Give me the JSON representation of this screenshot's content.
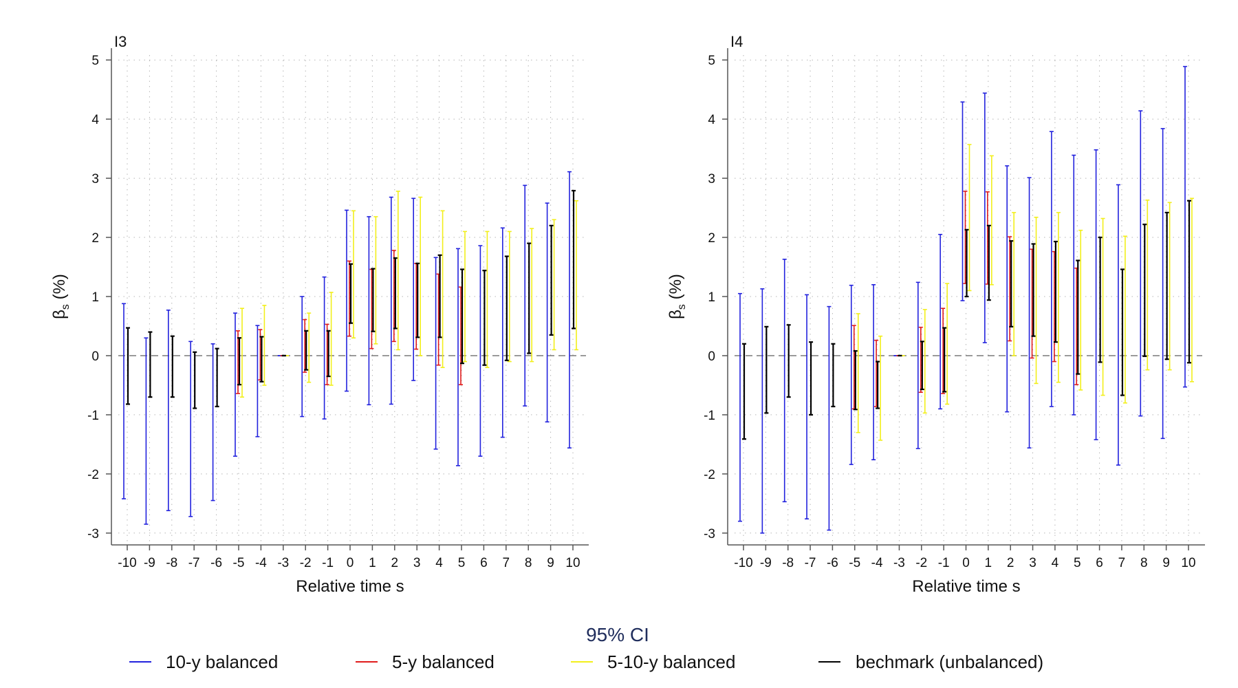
{
  "legend_title": "95% CI",
  "series_colors": {
    "10y": "#2222dd",
    "5y": "#e01a1a",
    "510y": "#f2ef1a",
    "bench": "#000000"
  },
  "legend": [
    {
      "key": "10y",
      "label": "10-y balanced"
    },
    {
      "key": "5y",
      "label": "5-y balanced"
    },
    {
      "key": "510y",
      "label": "5-10-y balanced"
    },
    {
      "key": "bench",
      "label": "bechmark (unbalanced)"
    }
  ],
  "chart_data": [
    {
      "type": "errorbar",
      "title": "I3",
      "xlabel": "Relative time s",
      "ylabel_main": "β",
      "ylabel_sub": "s",
      "ylabel_rest": " (%)",
      "x": [
        -10,
        -9,
        -8,
        -7,
        -6,
        -5,
        -4,
        -3,
        -2,
        -1,
        0,
        1,
        2,
        3,
        4,
        5,
        6,
        7,
        8,
        9,
        10
      ],
      "ylim": [
        -3.2,
        5.2
      ],
      "yticks": [
        -3,
        -2,
        -1,
        0,
        1,
        2,
        3,
        4,
        5
      ],
      "xtick_labels": [
        "-10",
        "-9",
        "-8",
        "-7",
        "-6",
        "-5",
        "-4",
        "-3",
        "-2",
        "-1",
        "0",
        "1",
        "2",
        "3",
        "4",
        "5",
        "6",
        "7",
        "8",
        "9",
        "10"
      ],
      "ytick_labels": [
        "-3",
        "-2",
        "-1",
        "0",
        "1",
        "2",
        "3",
        "4",
        "5"
      ],
      "series": [
        {
          "key": "10y",
          "low": [
            -2.42,
            -2.85,
            -2.62,
            -2.72,
            -2.45,
            -1.7,
            -1.37,
            0,
            -1.03,
            -1.07,
            -0.6,
            -0.83,
            -0.82,
            -0.42,
            -1.58,
            -1.86,
            -1.7,
            -1.38,
            -0.85,
            -1.12,
            -1.56
          ],
          "high": [
            0.88,
            0.3,
            0.77,
            0.24,
            0.2,
            0.72,
            0.51,
            0,
            1.0,
            1.33,
            2.46,
            2.35,
            2.68,
            2.66,
            1.66,
            1.81,
            1.86,
            2.16,
            2.88,
            2.58,
            3.11
          ]
        },
        {
          "key": "5y",
          "low": [
            null,
            null,
            null,
            null,
            null,
            -0.64,
            -0.41,
            0,
            -0.28,
            -0.49,
            0.33,
            0.12,
            0.24,
            0.11,
            -0.16,
            -0.49,
            null,
            null,
            null,
            null,
            null
          ],
          "high": [
            null,
            null,
            null,
            null,
            null,
            0.42,
            0.44,
            0,
            0.61,
            0.53,
            1.6,
            1.46,
            1.78,
            1.56,
            1.38,
            1.16,
            null,
            null,
            null,
            null,
            null
          ]
        },
        {
          "key": "510y",
          "low": [
            null,
            null,
            null,
            null,
            null,
            -0.7,
            -0.5,
            0,
            -0.45,
            -0.5,
            0.3,
            0.2,
            0.1,
            0.0,
            -0.2,
            -0.1,
            -0.2,
            -0.1,
            -0.1,
            0.1,
            0.1
          ],
          "high": [
            null,
            null,
            null,
            null,
            null,
            0.8,
            0.85,
            0,
            0.72,
            1.07,
            2.45,
            2.35,
            2.78,
            2.68,
            2.45,
            2.1,
            2.1,
            2.1,
            2.15,
            2.3,
            2.62
          ]
        },
        {
          "key": "bench",
          "low": [
            -0.82,
            -0.7,
            -0.7,
            -0.89,
            -0.86,
            -0.49,
            -0.44,
            0,
            -0.24,
            -0.35,
            0.55,
            0.41,
            0.46,
            0.31,
            0.31,
            -0.13,
            -0.16,
            -0.08,
            0.04,
            0.35,
            0.46
          ],
          "high": [
            0.47,
            0.4,
            0.33,
            0.06,
            0.12,
            0.3,
            0.32,
            0,
            0.42,
            0.42,
            1.55,
            1.47,
            1.65,
            1.56,
            1.7,
            1.46,
            1.44,
            1.68,
            1.9,
            2.2,
            2.79
          ]
        }
      ]
    },
    {
      "type": "errorbar",
      "title": "I4",
      "xlabel": "Relative time s",
      "ylabel_main": "β",
      "ylabel_sub": "s",
      "ylabel_rest": " (%)",
      "x": [
        -10,
        -9,
        -8,
        -7,
        -6,
        -5,
        -4,
        -3,
        -2,
        -1,
        0,
        1,
        2,
        3,
        4,
        5,
        6,
        7,
        8,
        9,
        10
      ],
      "ylim": [
        -3.2,
        5.2
      ],
      "yticks": [
        -3,
        -2,
        -1,
        0,
        1,
        2,
        3,
        4,
        5
      ],
      "xtick_labels": [
        "-10",
        "-9",
        "-8",
        "-7",
        "-6",
        "-5",
        "-4",
        "-3",
        "-2",
        "-1",
        "0",
        "1",
        "2",
        "3",
        "4",
        "5",
        "6",
        "7",
        "8",
        "9",
        "10"
      ],
      "ytick_labels": [
        "-3",
        "-2",
        "-1",
        "0",
        "1",
        "2",
        "3",
        "4",
        "5"
      ],
      "series": [
        {
          "key": "10y",
          "low": [
            -2.8,
            -3.0,
            -2.47,
            -2.76,
            -2.95,
            -1.84,
            -1.76,
            0,
            -1.57,
            -0.9,
            0.93,
            0.22,
            -0.95,
            -1.56,
            -0.86,
            -1.0,
            -1.42,
            -1.85,
            -1.02,
            -1.4,
            -0.53
          ],
          "high": [
            1.05,
            1.13,
            1.63,
            1.03,
            0.83,
            1.19,
            1.2,
            0,
            1.24,
            2.05,
            4.29,
            4.44,
            3.21,
            3.01,
            3.79,
            3.39,
            3.48,
            2.89,
            4.14,
            3.84,
            4.89
          ]
        },
        {
          "key": "5y",
          "low": [
            null,
            null,
            null,
            null,
            null,
            -0.9,
            -0.86,
            0,
            -0.62,
            -0.64,
            1.22,
            1.21,
            0.25,
            -0.04,
            -0.1,
            -0.49,
            null,
            null,
            null,
            null,
            null
          ],
          "high": [
            null,
            null,
            null,
            null,
            null,
            0.51,
            0.26,
            0,
            0.48,
            0.8,
            2.78,
            2.77,
            2.01,
            1.8,
            1.76,
            1.48,
            null,
            null,
            null,
            null,
            null
          ]
        },
        {
          "key": "510y",
          "low": [
            null,
            null,
            null,
            null,
            null,
            -1.3,
            -1.43,
            0,
            -0.97,
            -0.82,
            1.1,
            1.2,
            0.0,
            -0.47,
            -0.45,
            -0.58,
            -0.67,
            -0.8,
            -0.24,
            -0.24,
            -0.44
          ],
          "high": [
            null,
            null,
            null,
            null,
            null,
            0.71,
            0.33,
            0,
            0.78,
            1.22,
            3.57,
            3.38,
            2.42,
            2.34,
            2.42,
            2.12,
            2.32,
            2.02,
            2.63,
            2.59,
            2.66
          ]
        },
        {
          "key": "bench",
          "low": [
            -1.41,
            -0.97,
            -0.7,
            -1.0,
            -0.86,
            -0.91,
            -0.89,
            0,
            -0.57,
            -0.61,
            1.0,
            0.94,
            0.49,
            0.33,
            0.23,
            -0.31,
            -0.11,
            -0.67,
            -0.01,
            -0.06,
            -0.12
          ],
          "high": [
            0.2,
            0.49,
            0.52,
            0.23,
            0.2,
            0.08,
            -0.1,
            0,
            0.24,
            0.47,
            2.13,
            2.2,
            1.94,
            1.89,
            1.93,
            1.61,
            2.0,
            1.46,
            2.22,
            2.42,
            2.62
          ]
        }
      ]
    }
  ]
}
